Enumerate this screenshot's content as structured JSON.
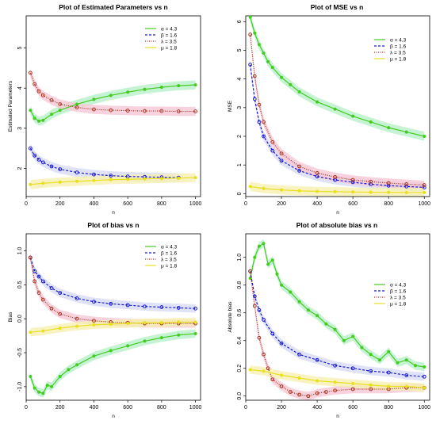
{
  "colors": {
    "alpha": "#44cc22",
    "beta": "#1818d8",
    "lambda": "#aa3322",
    "mu": "#e8e020"
  },
  "chart_data": [
    {
      "type": "line",
      "title": "Plot of Estimated Parameters vs n",
      "xlabel": "n",
      "ylabel": "Estimated Parameters",
      "xlim": [
        0,
        1030
      ],
      "ylim": [
        1.3,
        5.8
      ],
      "xticks": [
        "0",
        "200",
        "400",
        "600",
        "800",
        "1000"
      ],
      "yticks": [
        "2",
        "3",
        "4",
        "5"
      ],
      "legend_position": "top-right",
      "series": [
        {
          "name": "α = 4.3",
          "key": "alpha",
          "style": "solid",
          "marker": "dot",
          "x": [
            25,
            50,
            75,
            100,
            150,
            200,
            300,
            400,
            500,
            600,
            700,
            800,
            900,
            1000
          ],
          "values": [
            3.45,
            3.25,
            3.18,
            3.2,
            3.35,
            3.45,
            3.6,
            3.72,
            3.82,
            3.9,
            3.97,
            4.02,
            4.06,
            4.08
          ]
        },
        {
          "name": "β = 1.6",
          "key": "beta",
          "style": "dashed",
          "marker": "circle",
          "x": [
            25,
            50,
            75,
            100,
            150,
            200,
            300,
            400,
            500,
            600,
            700,
            800,
            900
          ],
          "values": [
            2.5,
            2.32,
            2.22,
            2.15,
            2.05,
            1.98,
            1.9,
            1.85,
            1.82,
            1.8,
            1.79,
            1.78,
            1.77
          ]
        },
        {
          "name": "λ = 3.5",
          "key": "lambda",
          "style": "dotted",
          "marker": "circle",
          "x": [
            25,
            50,
            75,
            100,
            150,
            200,
            300,
            400,
            500,
            600,
            700,
            800,
            900,
            1000
          ],
          "values": [
            4.38,
            4.1,
            3.92,
            3.82,
            3.7,
            3.6,
            3.52,
            3.47,
            3.45,
            3.44,
            3.43,
            3.43,
            3.42,
            3.42
          ]
        },
        {
          "name": "μ = 1.8",
          "key": "mu",
          "style": "solid",
          "marker": "dot",
          "x": [
            25,
            100,
            200,
            300,
            400,
            500,
            600,
            700,
            800,
            900,
            1000
          ],
          "values": [
            1.6,
            1.63,
            1.66,
            1.68,
            1.7,
            1.72,
            1.73,
            1.74,
            1.75,
            1.76,
            1.77
          ]
        }
      ]
    },
    {
      "type": "line",
      "title": "Plot of MSE vs n",
      "xlabel": "n",
      "ylabel": "MSE",
      "xlim": [
        0,
        1030
      ],
      "ylim": [
        -0.1,
        6.2
      ],
      "xticks": [
        "0",
        "200",
        "400",
        "600",
        "800",
        "1000"
      ],
      "yticks": [
        "0",
        "1",
        "2",
        "3",
        "4",
        "5",
        "6"
      ],
      "legend_position": "top-right",
      "series": [
        {
          "name": "α = 4.3",
          "key": "alpha",
          "style": "solid",
          "marker": "dot",
          "x": [
            25,
            50,
            75,
            100,
            125,
            150,
            200,
            250,
            300,
            400,
            500,
            600,
            700,
            800,
            900,
            1000
          ],
          "values": [
            6.15,
            5.6,
            5.2,
            4.9,
            4.6,
            4.4,
            4.05,
            3.8,
            3.55,
            3.2,
            2.95,
            2.7,
            2.5,
            2.3,
            2.15,
            2.0
          ]
        },
        {
          "name": "β = 1.6",
          "key": "beta",
          "style": "dashed",
          "marker": "circle",
          "x": [
            25,
            50,
            75,
            100,
            150,
            200,
            300,
            400,
            500,
            600,
            700,
            800,
            900,
            1000
          ],
          "values": [
            4.5,
            3.3,
            2.5,
            2.0,
            1.5,
            1.15,
            0.8,
            0.6,
            0.48,
            0.4,
            0.33,
            0.28,
            0.25,
            0.22
          ]
        },
        {
          "name": "λ = 3.5",
          "key": "lambda",
          "style": "dotted",
          "marker": "circle",
          "x": [
            25,
            50,
            75,
            100,
            150,
            200,
            300,
            400,
            500,
            600,
            700,
            800,
            900,
            1000
          ],
          "values": [
            5.55,
            4.1,
            3.1,
            2.5,
            1.8,
            1.4,
            0.95,
            0.72,
            0.58,
            0.48,
            0.42,
            0.37,
            0.33,
            0.3
          ]
        },
        {
          "name": "μ = 1.8",
          "key": "mu",
          "style": "solid",
          "marker": "dot",
          "x": [
            25,
            100,
            200,
            300,
            400,
            500,
            600,
            700,
            800,
            900,
            1000
          ],
          "values": [
            0.25,
            0.18,
            0.13,
            0.1,
            0.08,
            0.07,
            0.06,
            0.05,
            0.05,
            0.04,
            0.04
          ]
        }
      ]
    },
    {
      "type": "line",
      "title": "Plot of bias vs n",
      "xlabel": "n",
      "ylabel": "Bias",
      "xlim": [
        0,
        1030
      ],
      "ylim": [
        -1.2,
        1.25
      ],
      "xticks": [
        "0",
        "200",
        "400",
        "600",
        "800",
        "1000"
      ],
      "yticks": [
        "-1.0",
        "-0.5",
        "0.0",
        "0.5",
        "1.0"
      ],
      "legend_position": "top-right",
      "series": [
        {
          "name": "α = 4.3",
          "key": "alpha",
          "style": "solid",
          "marker": "dot",
          "x": [
            25,
            50,
            75,
            100,
            125,
            150,
            200,
            250,
            300,
            400,
            500,
            600,
            700,
            800,
            900,
            1000
          ],
          "values": [
            -0.85,
            -1.02,
            -1.08,
            -1.1,
            -0.98,
            -1.0,
            -0.85,
            -0.75,
            -0.68,
            -0.55,
            -0.47,
            -0.4,
            -0.33,
            -0.28,
            -0.24,
            -0.22
          ]
        },
        {
          "name": "β = 1.6",
          "key": "beta",
          "style": "dashed",
          "marker": "circle",
          "x": [
            25,
            50,
            75,
            100,
            150,
            200,
            300,
            400,
            500,
            600,
            700,
            800,
            900,
            1000
          ],
          "values": [
            0.9,
            0.7,
            0.62,
            0.55,
            0.45,
            0.38,
            0.3,
            0.25,
            0.22,
            0.2,
            0.18,
            0.17,
            0.16,
            0.15
          ]
        },
        {
          "name": "λ = 3.5",
          "key": "lambda",
          "style": "dotted",
          "marker": "circle",
          "x": [
            25,
            50,
            75,
            100,
            150,
            200,
            300,
            400,
            500,
            600,
            700,
            800,
            900,
            1000
          ],
          "values": [
            0.9,
            0.55,
            0.38,
            0.28,
            0.15,
            0.07,
            0.0,
            -0.03,
            -0.05,
            -0.06,
            -0.07,
            -0.07,
            -0.07,
            -0.07
          ]
        },
        {
          "name": "μ = 1.8",
          "key": "mu",
          "style": "solid",
          "marker": "dot",
          "x": [
            25,
            100,
            200,
            300,
            400,
            500,
            600,
            700,
            800,
            900,
            1000
          ],
          "values": [
            -0.2,
            -0.18,
            -0.14,
            -0.11,
            -0.09,
            -0.08,
            -0.07,
            -0.06,
            -0.06,
            -0.05,
            -0.05
          ]
        }
      ]
    },
    {
      "type": "line",
      "title": "Plot of absolute bias vs n",
      "xlabel": "n",
      "ylabel": "Absolute bias",
      "xlim": [
        0,
        1030
      ],
      "ylim": [
        -0.03,
        1.17
      ],
      "xticks": [
        "0",
        "200",
        "400",
        "600",
        "800",
        "1000"
      ],
      "yticks": [
        "0.0",
        "0.2",
        "0.4",
        "0.6",
        "0.8",
        "1.0"
      ],
      "legend_position": "right",
      "series": [
        {
          "name": "α = 4.3",
          "key": "alpha",
          "style": "solid",
          "marker": "dot",
          "x": [
            25,
            50,
            75,
            100,
            125,
            150,
            175,
            200,
            250,
            300,
            350,
            400,
            450,
            500,
            550,
            600,
            650,
            700,
            750,
            800,
            850,
            900,
            950,
            1000
          ],
          "values": [
            0.85,
            1.0,
            1.08,
            1.1,
            0.95,
            0.98,
            0.88,
            0.8,
            0.75,
            0.68,
            0.62,
            0.58,
            0.52,
            0.48,
            0.4,
            0.43,
            0.35,
            0.3,
            0.26,
            0.32,
            0.24,
            0.26,
            0.22,
            0.21
          ]
        },
        {
          "name": "β = 1.6",
          "key": "beta",
          "style": "dashed",
          "marker": "circle",
          "x": [
            25,
            50,
            75,
            100,
            150,
            200,
            300,
            400,
            500,
            600,
            700,
            800,
            900,
            1000
          ],
          "values": [
            0.9,
            0.72,
            0.62,
            0.55,
            0.45,
            0.38,
            0.3,
            0.26,
            0.22,
            0.2,
            0.18,
            0.17,
            0.15,
            0.14
          ]
        },
        {
          "name": "λ = 3.5",
          "key": "lambda",
          "style": "dotted",
          "marker": "circle",
          "x": [
            25,
            50,
            75,
            100,
            125,
            150,
            200,
            250,
            300,
            350,
            400,
            450,
            500,
            600,
            700,
            800,
            900,
            1000
          ],
          "values": [
            0.9,
            0.65,
            0.42,
            0.3,
            0.2,
            0.12,
            0.07,
            0.03,
            0.01,
            0.0,
            0.02,
            0.03,
            0.04,
            0.05,
            0.05,
            0.05,
            0.06,
            0.06
          ]
        },
        {
          "name": "μ = 1.8",
          "key": "mu",
          "style": "solid",
          "marker": "dot",
          "x": [
            25,
            100,
            200,
            300,
            400,
            500,
            600,
            700,
            800,
            900,
            1000
          ],
          "values": [
            0.19,
            0.18,
            0.15,
            0.13,
            0.11,
            0.1,
            0.09,
            0.08,
            0.07,
            0.07,
            0.06
          ]
        }
      ]
    }
  ]
}
